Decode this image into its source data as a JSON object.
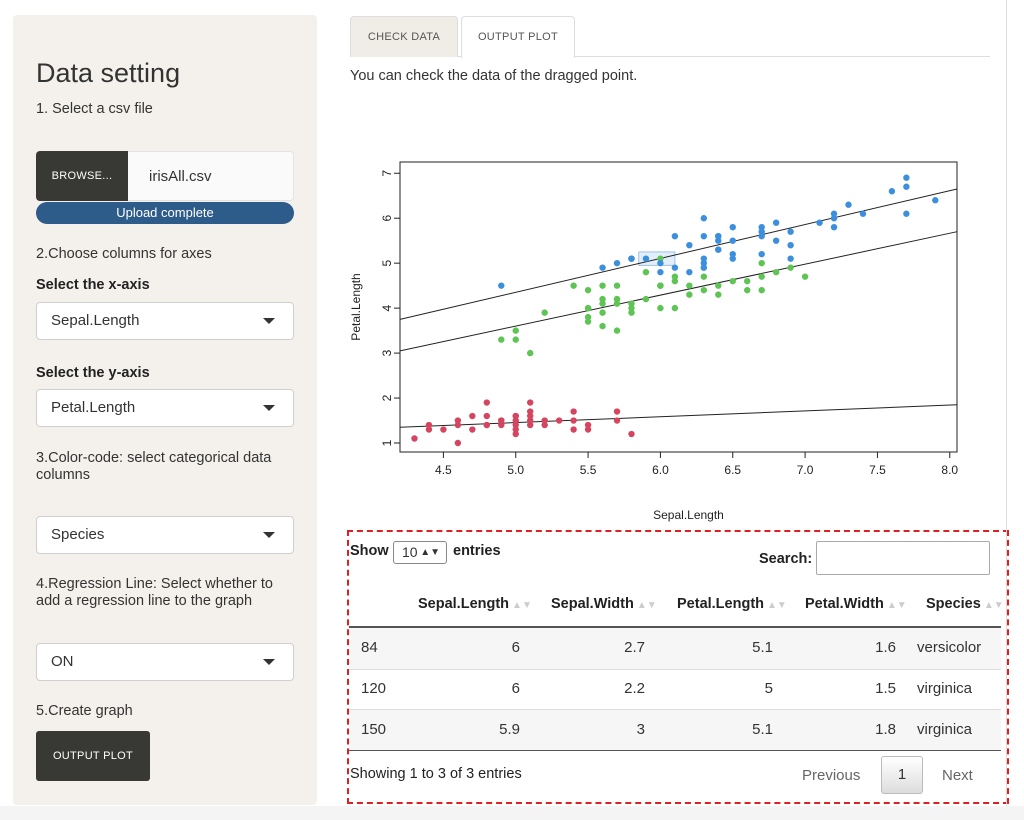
{
  "sidebar": {
    "title": "Data setting",
    "step1": "1. Select a csv file",
    "browse_label": "BROWSE...",
    "file_name": "irisAll.csv",
    "upload_status": "Upload complete",
    "upload_progress_percent": 100,
    "step2": "2.Choose columns for axes",
    "x_axis_label": "Select the x-axis",
    "x_axis_value": "Sepal.Length",
    "y_axis_label": "Select the y-axis",
    "y_axis_value": "Petal.Length",
    "step3": "3.Color-code: select categorical data columns",
    "color_value": "Species",
    "step4": "4.Regression Line: Select whether to add a regression line to the graph",
    "regression_value": "ON",
    "step5": "5.Create graph",
    "output_button": "OUTPUT PLOT"
  },
  "tabs": [
    {
      "label": "CHECK DATA",
      "active": false
    },
    {
      "label": "OUTPUT PLOT",
      "active": true
    }
  ],
  "info_text": "You can check the data of the dragged point.",
  "chart_data": {
    "type": "scatter",
    "xlabel": "Sepal.Length",
    "ylabel": "Petal.Length",
    "xlim": [
      4.2,
      8.05
    ],
    "ylim": [
      0.8,
      7.25
    ],
    "xticks": [
      4.5,
      5.0,
      5.5,
      6.0,
      6.5,
      7.0,
      7.5,
      8.0
    ],
    "xtick_labels": [
      "4.5",
      "5.0",
      "5.5",
      "6.0",
      "6.5",
      "7.0",
      "7.5",
      "8.0"
    ],
    "yticks": [
      1,
      2,
      3,
      4,
      5,
      6,
      7
    ],
    "ytick_labels": [
      "1",
      "2",
      "3",
      "4",
      "5",
      "6",
      "7"
    ],
    "colors": {
      "setosa": "#d6455f",
      "versicolor": "#5ec453",
      "virginica": "#3c8fdc"
    },
    "series": [
      {
        "group": "setosa",
        "x": [
          4.3,
          4.4,
          4.4,
          4.5,
          4.6,
          4.6,
          4.6,
          4.7,
          4.7,
          4.8,
          4.8,
          4.8,
          4.9,
          4.9,
          5.0,
          5.0,
          5.0,
          5.0,
          5.0,
          5.1,
          5.1,
          5.1,
          5.1,
          5.2,
          5.2,
          5.3,
          5.4,
          5.4,
          5.4,
          5.5,
          5.5,
          5.7,
          5.7,
          5.8,
          4.8,
          5.1,
          4.9,
          5.0
        ],
        "y": [
          1.1,
          1.3,
          1.4,
          1.3,
          1.0,
          1.4,
          1.5,
          1.3,
          1.6,
          1.4,
          1.6,
          1.9,
          1.4,
          1.5,
          1.2,
          1.3,
          1.4,
          1.5,
          1.6,
          1.4,
          1.5,
          1.7,
          1.9,
          1.4,
          1.5,
          1.5,
          1.3,
          1.5,
          1.7,
          1.3,
          1.4,
          1.5,
          1.7,
          1.2,
          1.4,
          1.6,
          1.5,
          1.6
        ]
      },
      {
        "group": "versicolor",
        "x": [
          4.9,
          5.0,
          5.0,
          5.1,
          5.2,
          5.4,
          5.5,
          5.5,
          5.5,
          5.5,
          5.6,
          5.6,
          5.6,
          5.6,
          5.7,
          5.7,
          5.7,
          5.7,
          5.8,
          5.8,
          5.8,
          5.9,
          5.9,
          6.0,
          6.0,
          6.0,
          6.0,
          6.1,
          6.1,
          6.1,
          6.2,
          6.2,
          6.3,
          6.3,
          6.3,
          6.4,
          6.4,
          6.5,
          6.6,
          6.6,
          6.7,
          6.7,
          6.7,
          6.8,
          6.9,
          7.0,
          5.6,
          6.0,
          5.7,
          5.5
        ],
        "y": [
          3.3,
          3.3,
          3.5,
          3.0,
          3.9,
          4.5,
          3.8,
          4.0,
          4.4,
          4.0,
          3.6,
          3.9,
          4.1,
          4.2,
          3.5,
          4.1,
          4.2,
          4.5,
          3.9,
          4.0,
          4.1,
          4.2,
          4.8,
          4.0,
          4.5,
          4.5,
          5.1,
          4.0,
          4.6,
          4.7,
          4.3,
          4.5,
          4.4,
          4.7,
          4.9,
          4.3,
          4.5,
          4.6,
          4.4,
          4.6,
          4.4,
          4.7,
          5.0,
          4.8,
          4.9,
          4.7,
          4.5,
          4.5,
          4.2,
          3.7
        ]
      },
      {
        "group": "virginica",
        "x": [
          4.9,
          5.6,
          5.7,
          5.8,
          5.8,
          5.9,
          6.0,
          6.0,
          6.1,
          6.1,
          6.2,
          6.3,
          6.3,
          6.3,
          6.3,
          6.3,
          6.4,
          6.4,
          6.4,
          6.4,
          6.5,
          6.5,
          6.5,
          6.7,
          6.7,
          6.7,
          6.7,
          6.8,
          6.8,
          6.9,
          6.9,
          6.9,
          7.1,
          7.2,
          7.2,
          7.2,
          7.3,
          7.4,
          7.6,
          7.7,
          7.7,
          7.7,
          7.9,
          6.2,
          6.5,
          6.4,
          5.8
        ],
        "y": [
          4.5,
          4.9,
          5.0,
          5.1,
          5.1,
          5.1,
          4.8,
          5.0,
          4.9,
          5.6,
          4.8,
          4.9,
          5.0,
          5.1,
          5.6,
          6.0,
          5.3,
          5.5,
          5.6,
          5.3,
          5.1,
          5.2,
          5.5,
          5.2,
          5.6,
          5.7,
          5.8,
          5.5,
          5.9,
          5.1,
          5.4,
          5.7,
          5.9,
          5.8,
          6.0,
          6.1,
          6.3,
          6.1,
          6.6,
          6.7,
          6.9,
          6.1,
          6.4,
          5.4,
          5.8,
          5.6,
          5.1
        ]
      }
    ],
    "regression_lines": [
      {
        "group": "setosa",
        "x": [
          4.2,
          8.05
        ],
        "y": [
          1.35,
          1.85
        ]
      },
      {
        "group": "versicolor",
        "x": [
          4.2,
          8.05
        ],
        "y": [
          3.05,
          5.7
        ]
      },
      {
        "group": "virginica",
        "x": [
          4.2,
          8.05
        ],
        "y": [
          3.75,
          6.65
        ]
      }
    ],
    "selection_box": {
      "x": [
        5.85,
        6.1
      ],
      "y": [
        4.95,
        5.25
      ]
    }
  },
  "table": {
    "show_label": "Show",
    "entries_value": "10",
    "entries_label": "entries",
    "search_label": "Search:",
    "search_value": "",
    "columns": [
      "Sepal.Length",
      "Sepal.Width",
      "Petal.Length",
      "Petal.Width",
      "Species"
    ],
    "rows": [
      {
        "id": "84",
        "cells": [
          "6",
          "2.7",
          "5.1",
          "1.6",
          "versicolor"
        ]
      },
      {
        "id": "120",
        "cells": [
          "6",
          "2.2",
          "5",
          "1.5",
          "virginica"
        ]
      },
      {
        "id": "150",
        "cells": [
          "5.9",
          "3",
          "5.1",
          "1.8",
          "virginica"
        ]
      }
    ],
    "info": "Showing 1 to 3 of 3 entries",
    "prev_label": "Previous",
    "page": "1",
    "next_label": "Next"
  }
}
